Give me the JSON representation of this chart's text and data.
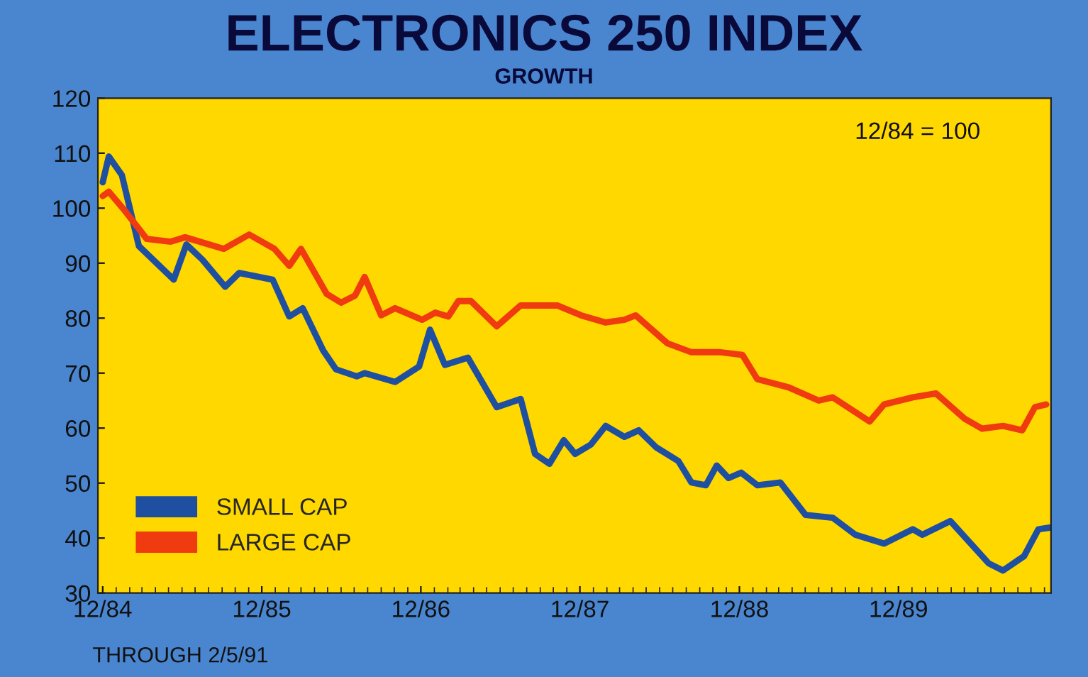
{
  "chart_data": {
    "type": "line",
    "title": "ELECTRONICS 250 INDEX",
    "subtitle": "GROWTH",
    "annotations": [
      "12/84 = 100",
      "THROUGH 2/5/91"
    ],
    "xlim": [
      "1984-11-20",
      "1990-11-16"
    ],
    "xticks": [
      {
        "value": "1984-12-01",
        "label": "12/84"
      },
      {
        "value": "1985-12-01",
        "label": "12/85"
      },
      {
        "value": "1986-12-01",
        "label": "12/86"
      },
      {
        "value": "1987-12-01",
        "label": "12/87"
      },
      {
        "value": "1988-12-01",
        "label": "12/88"
      },
      {
        "value": "1989-12-01",
        "label": "12/89"
      }
    ],
    "ylim": [
      30,
      120
    ],
    "yticks": [
      30,
      40,
      50,
      60,
      70,
      80,
      90,
      100,
      110,
      120
    ],
    "legend": "bottom left",
    "line_style": "solid",
    "series": [
      {
        "name": "SMALL CAP",
        "color": "#1f4fa0",
        "x": [
          "1984-12-01",
          "1984-12-15",
          "1985-01-14",
          "1985-02-22",
          "1985-05-13",
          "1985-06-11",
          "1985-07-18",
          "1985-09-08",
          "1985-10-10",
          "1985-12-26",
          "1986-02-02",
          "1986-03-05",
          "1986-04-21",
          "1986-05-20",
          "1986-07-07",
          "1986-07-25",
          "1986-10-03",
          "1986-11-27",
          "1986-12-22",
          "1987-01-25",
          "1987-03-19",
          "1987-05-24",
          "1987-07-18",
          "1987-08-20",
          "1987-09-22",
          "1987-10-25",
          "1987-11-20",
          "1987-12-26",
          "1988-01-29",
          "1988-03-12",
          "1988-04-14",
          "1988-05-24",
          "1988-07-14",
          "1988-08-13",
          "1988-09-15",
          "1988-10-10",
          "1988-11-06",
          "1988-12-05",
          "1989-01-11",
          "1989-03-05",
          "1989-05-02",
          "1989-07-03",
          "1989-08-24",
          "1989-10-29",
          "1990-01-03",
          "1990-01-25",
          "1990-03-30",
          "1990-06-26",
          "1990-07-29",
          "1990-09-15",
          "1990-10-18",
          "1990-11-13"
        ],
        "values": [
          104.7,
          109.4,
          106,
          93.1,
          87,
          93.4,
          90.6,
          85.7,
          88.2,
          87,
          80.3,
          81.8,
          74.1,
          70.7,
          69.4,
          70,
          68.4,
          71.2,
          77.9,
          71.5,
          72.8,
          63.8,
          65.3,
          55.3,
          53.5,
          57.8,
          55.3,
          57,
          60.4,
          58.4,
          59.6,
          56.5,
          54,
          50.1,
          49.6,
          53.2,
          50.9,
          51.9,
          49.6,
          50.1,
          44.2,
          43.7,
          40.6,
          39,
          41.6,
          40.6,
          43.1,
          35.4,
          34.1,
          36.7,
          41.6,
          41.9
        ]
      },
      {
        "name": "LARGE CAP",
        "color": "#f03a10",
        "x": [
          "1984-12-01",
          "1984-12-15",
          "1985-01-18",
          "1985-03-12",
          "1985-05-06",
          "1985-06-08",
          "1985-09-05",
          "1985-11-02",
          "1985-12-30",
          "1986-02-02",
          "1986-03-01",
          "1986-04-29",
          "1986-06-01",
          "1986-07-03",
          "1986-07-25",
          "1986-09-01",
          "1986-10-03",
          "1986-12-04",
          "1987-01-03",
          "1987-02-02",
          "1987-02-25",
          "1987-03-26",
          "1987-05-24",
          "1987-07-18",
          "1987-10-10",
          "1987-12-04",
          "1988-01-29",
          "1988-03-12",
          "1988-04-07",
          "1988-06-19",
          "1988-08-13",
          "1988-10-18",
          "1988-12-08",
          "1989-01-11",
          "1989-03-24",
          "1989-06-01",
          "1989-07-03",
          "1989-09-26",
          "1989-10-29",
          "1990-01-03",
          "1990-02-25",
          "1990-05-02",
          "1990-06-11",
          "1990-07-29",
          "1990-09-11",
          "1990-10-10",
          "1990-11-05"
        ],
        "values": [
          102.2,
          103,
          99.8,
          94.4,
          93.9,
          94.7,
          92.6,
          95.2,
          92.6,
          89.5,
          92.6,
          84.4,
          82.8,
          84.1,
          87.5,
          80.5,
          81.8,
          79.7,
          81,
          80.3,
          83.1,
          83.1,
          78.5,
          82.3,
          82.3,
          80.5,
          79.2,
          79.7,
          80.5,
          75.4,
          73.8,
          73.8,
          73.3,
          68.9,
          67.4,
          65,
          65.6,
          61.2,
          64.3,
          65.6,
          66.3,
          61.7,
          59.9,
          60.4,
          59.6,
          63.8,
          64.3
        ]
      }
    ]
  }
}
